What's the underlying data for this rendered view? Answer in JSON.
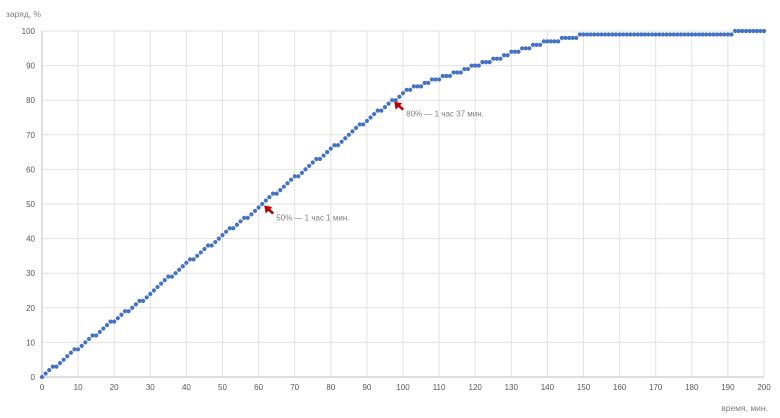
{
  "chart_data": {
    "type": "scatter",
    "title": "",
    "xlabel": "время, мин.",
    "ylabel": "заряд, %",
    "xlim": [
      0,
      200
    ],
    "ylim": [
      0,
      100
    ],
    "x_ticks": [
      0,
      10,
      20,
      30,
      40,
      50,
      60,
      70,
      80,
      90,
      100,
      110,
      120,
      130,
      140,
      150,
      160,
      170,
      180,
      190,
      200
    ],
    "y_ticks": [
      0,
      10,
      20,
      30,
      40,
      50,
      60,
      70,
      80,
      90,
      100
    ],
    "grid": true,
    "marker_color": "#4472c4",
    "annotation_color": "#c00000",
    "series": [
      {
        "x": [
          0,
          1,
          2,
          3,
          4,
          5,
          6,
          7,
          8,
          9,
          10,
          11,
          12,
          13,
          14,
          15,
          16,
          17,
          18,
          19,
          20,
          21,
          22,
          23,
          24,
          25,
          26,
          27,
          28,
          29,
          30,
          31,
          32,
          33,
          34,
          35,
          36,
          37,
          38,
          39,
          40,
          41,
          42,
          43,
          44,
          45,
          46,
          47,
          48,
          49,
          50,
          51,
          52,
          53,
          54,
          55,
          56,
          57,
          58,
          59,
          60,
          61,
          62,
          63,
          64,
          65,
          66,
          67,
          68,
          69,
          70,
          71,
          72,
          73,
          74,
          75,
          76,
          77,
          78,
          79,
          80,
          81,
          82,
          83,
          84,
          85,
          86,
          87,
          88,
          89,
          90,
          91,
          92,
          93,
          94,
          95,
          96,
          97,
          98,
          99,
          100,
          101,
          102,
          103,
          104,
          105,
          106,
          107,
          108,
          109,
          110,
          111,
          112,
          113,
          114,
          115,
          116,
          117,
          118,
          119,
          120,
          121,
          122,
          123,
          124,
          125,
          126,
          127,
          128,
          129,
          130,
          131,
          132,
          133,
          134,
          135,
          136,
          137,
          138,
          139,
          140,
          141,
          142,
          143,
          144,
          145,
          146,
          147,
          148,
          149,
          150,
          151,
          152,
          153,
          154,
          155,
          156,
          157,
          158,
          159,
          160,
          161,
          162,
          163,
          164,
          165,
          166,
          167,
          168,
          169,
          170,
          171,
          172,
          173,
          174,
          175,
          176,
          177,
          178,
          179,
          180,
          181,
          182,
          183,
          184,
          185,
          186,
          187,
          188,
          189,
          190,
          191,
          192,
          193,
          194,
          195,
          196,
          197,
          198,
          199,
          200
        ],
        "y": [
          0,
          1,
          2,
          3,
          3,
          4,
          5,
          6,
          7,
          8,
          8,
          9,
          10,
          11,
          12,
          12,
          13,
          14,
          15,
          16,
          16,
          17,
          18,
          19,
          19,
          20,
          21,
          22,
          22,
          23,
          24,
          25,
          26,
          27,
          28,
          29,
          29,
          30,
          31,
          32,
          33,
          34,
          34,
          35,
          36,
          37,
          38,
          38,
          39,
          40,
          41,
          42,
          43,
          43,
          44,
          45,
          46,
          46,
          47,
          48,
          49,
          50,
          51,
          52,
          53,
          53,
          54,
          55,
          56,
          57,
          58,
          58,
          59,
          60,
          61,
          62,
          63,
          63,
          64,
          65,
          66,
          67,
          67,
          68,
          69,
          70,
          71,
          72,
          73,
          73,
          74,
          75,
          76,
          77,
          77,
          78,
          79,
          80,
          80,
          81,
          82,
          83,
          83,
          84,
          84,
          84,
          85,
          85,
          86,
          86,
          86,
          87,
          87,
          87,
          88,
          88,
          88,
          89,
          89,
          90,
          90,
          90,
          91,
          91,
          91,
          92,
          92,
          92,
          93,
          93,
          94,
          94,
          94,
          95,
          95,
          95,
          96,
          96,
          96,
          97,
          97,
          97,
          97,
          97,
          98,
          98,
          98,
          98,
          98,
          99,
          99,
          99,
          99,
          99,
          99,
          99,
          99,
          99,
          99,
          99,
          99,
          99,
          99,
          99,
          99,
          99,
          99,
          99,
          99,
          99,
          99,
          99,
          99,
          99,
          99,
          99,
          99,
          99,
          99,
          99,
          99,
          99,
          99,
          99,
          99,
          99,
          99,
          99,
          99,
          99,
          99,
          99,
          100,
          100,
          100,
          100,
          100,
          100,
          100,
          100,
          100
        ]
      }
    ],
    "annotations": [
      {
        "text": "50% — 1 час 1 мин.",
        "x": 61,
        "y": 50
      },
      {
        "text": "80% — 1 час 37 мин.",
        "x": 97,
        "y": 80
      }
    ]
  }
}
